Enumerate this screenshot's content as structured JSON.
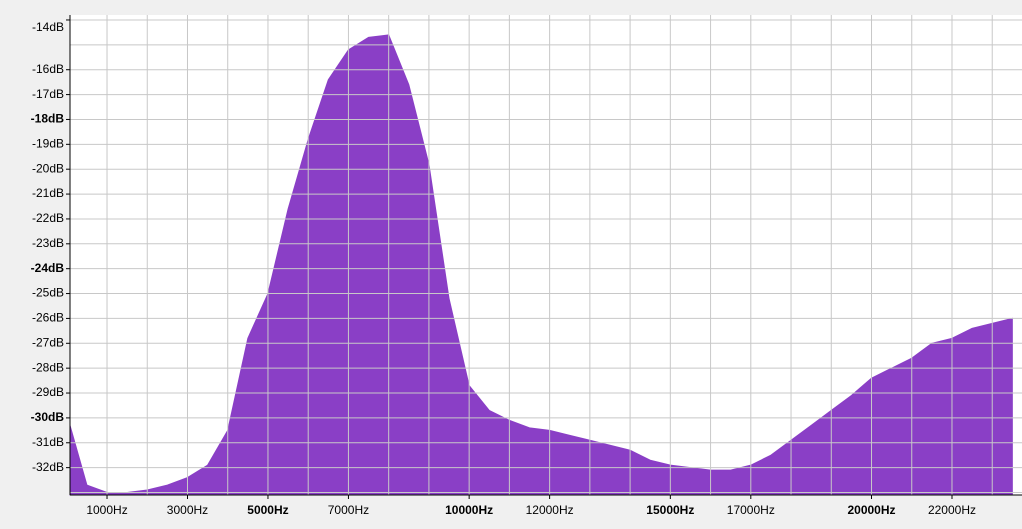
{
  "chart_data": {
    "type": "area",
    "color": "#8a3fc6",
    "x": [
      80,
      500,
      1000,
      1500,
      2000,
      2500,
      3000,
      3500,
      4000,
      4500,
      5000,
      5500,
      6000,
      6500,
      7000,
      7500,
      8000,
      8500,
      9000,
      9500,
      10000,
      10500,
      11000,
      11500,
      12000,
      12500,
      13000,
      13500,
      14000,
      14500,
      15000,
      15500,
      16000,
      16500,
      17000,
      17500,
      18000,
      18500,
      19000,
      19500,
      20000,
      20500,
      21000,
      21500,
      22000,
      22500,
      23000,
      23500
    ],
    "values": [
      -30.3,
      -32.7,
      -33.0,
      -33.0,
      -32.9,
      -32.7,
      -32.4,
      -31.9,
      -30.5,
      -26.8,
      -25.0,
      -21.6,
      -18.8,
      -16.4,
      -15.2,
      -14.7,
      -14.6,
      -16.6,
      -19.8,
      -25.2,
      -28.7,
      -29.7,
      -30.1,
      -30.4,
      -30.5,
      -30.7,
      -30.9,
      -31.1,
      -31.3,
      -31.7,
      -31.9,
      -32.0,
      -32.1,
      -32.1,
      -31.9,
      -31.5,
      -30.9,
      -30.3,
      -29.7,
      -29.1,
      -28.4,
      -28.0,
      -27.6,
      -27.0,
      -26.8,
      -26.4,
      -26.2,
      -26.0
    ],
    "xlim": [
      80,
      23740
    ],
    "ylim": [
      -33.1,
      -13.8
    ],
    "xticks": [
      {
        "value": 1000,
        "label": "1000Hz"
      },
      {
        "value": 3000,
        "label": "3000Hz"
      },
      {
        "value": 5000,
        "label": "5000Hz"
      },
      {
        "value": 7000,
        "label": "7000Hz"
      },
      {
        "value": 10000,
        "label": "10000Hz"
      },
      {
        "value": 12000,
        "label": "12000Hz"
      },
      {
        "value": 15000,
        "label": "15000Hz"
      },
      {
        "value": 17000,
        "label": "17000Hz"
      },
      {
        "value": 20000,
        "label": "20000Hz"
      },
      {
        "value": 22000,
        "label": "22000Hz"
      }
    ],
    "yticks": [
      {
        "value": -14,
        "label": "-14dB"
      },
      {
        "value": -16,
        "label": "-16dB"
      },
      {
        "value": -17,
        "label": "-17dB"
      },
      {
        "value": -18,
        "label": "-18dB"
      },
      {
        "value": -19,
        "label": "-19dB"
      },
      {
        "value": -20,
        "label": "-20dB"
      },
      {
        "value": -21,
        "label": "-21dB"
      },
      {
        "value": -22,
        "label": "-22dB"
      },
      {
        "value": -23,
        "label": "-23dB"
      },
      {
        "value": -24,
        "label": "-24dB"
      },
      {
        "value": -25,
        "label": "-25dB"
      },
      {
        "value": -26,
        "label": "-26dB"
      },
      {
        "value": -27,
        "label": "-27dB"
      },
      {
        "value": -28,
        "label": "-28dB"
      },
      {
        "value": -29,
        "label": "-29dB"
      },
      {
        "value": -30,
        "label": "-30dB"
      },
      {
        "value": -31,
        "label": "-31dB"
      },
      {
        "value": -32,
        "label": "-32dB"
      }
    ],
    "xgrid": [
      1000,
      2000,
      3000,
      4000,
      5000,
      6000,
      7000,
      8000,
      9000,
      10000,
      11000,
      12000,
      13000,
      14000,
      15000,
      16000,
      17000,
      18000,
      19000,
      20000,
      21000,
      22000,
      23000
    ],
    "ygrid": [
      -33,
      -32,
      -31,
      -30,
      -29,
      -28,
      -27,
      -26,
      -25,
      -24,
      -23,
      -22,
      -21,
      -20,
      -19,
      -18,
      -17,
      -16,
      -15,
      -14
    ],
    "grid": true
  }
}
